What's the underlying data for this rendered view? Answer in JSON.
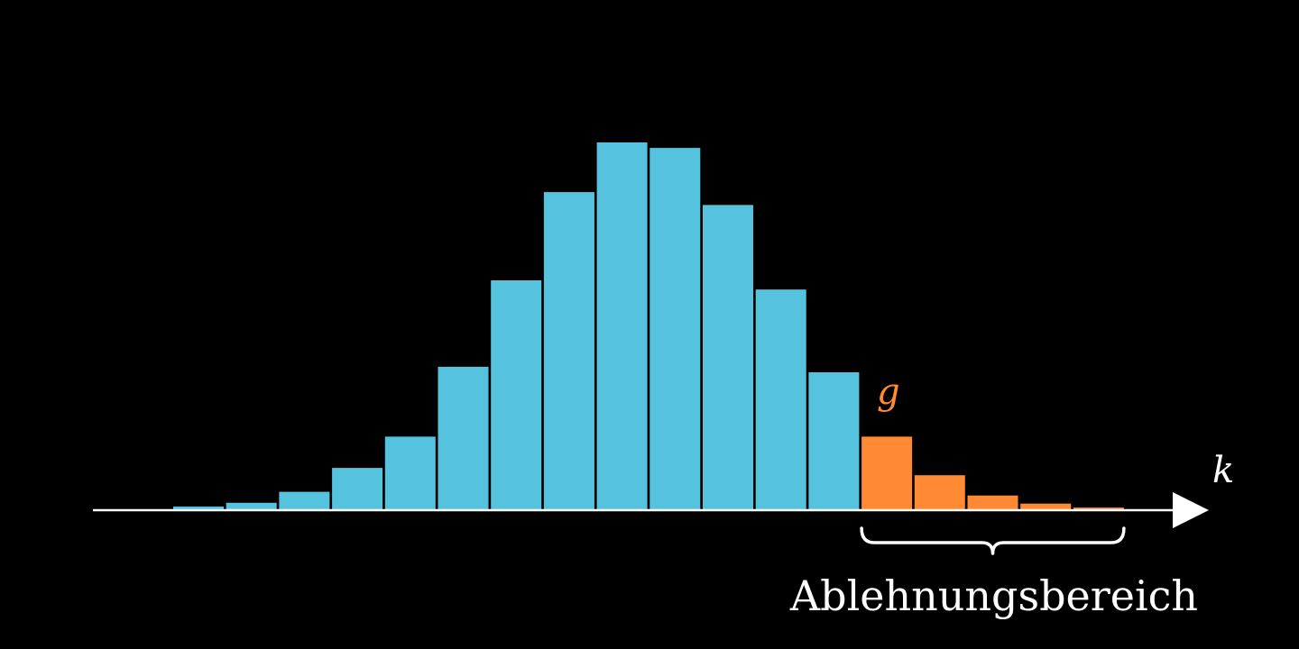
{
  "chart_data": {
    "type": "bar",
    "xlabel": "k",
    "threshold_label": "g",
    "region_label": "Ablehnungsbereich",
    "values": [
      0.01,
      0.02,
      0.05,
      0.115,
      0.2,
      0.39,
      0.625,
      0.865,
      1.0,
      0.985,
      0.83,
      0.6,
      0.375,
      0.2,
      0.095,
      0.04,
      0.018,
      0.007
    ],
    "rejection_start_index": 13,
    "colors": {
      "accepted": "#56C3DE",
      "rejected": "#FF8A33",
      "axis": "#FFFFFF",
      "background": "#000000"
    }
  }
}
